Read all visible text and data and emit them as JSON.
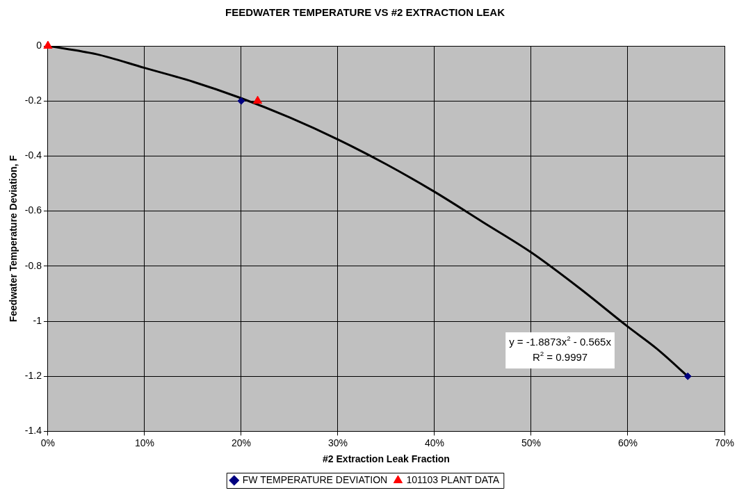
{
  "chart_data": {
    "type": "scatter",
    "title": "FEEDWATER TEMPERATURE VS #2 EXTRACTION LEAK",
    "xlabel": "#2 Extraction Leak Fraction",
    "ylabel": "Feedwater Temperature Deviation, F",
    "series": [
      {
        "name": "FW TEMPERATURE DEVIATION",
        "color": "#000080",
        "marker": "diamond",
        "x": [
          0.2,
          0.662
        ],
        "values": [
          -0.2,
          -1.2
        ]
      },
      {
        "name": "101103 PLANT DATA",
        "color": "#ff0000",
        "marker": "triangle",
        "x": [
          0,
          0.217
        ],
        "values": [
          0,
          -0.2
        ]
      },
      {
        "type": "line",
        "color": "#000000",
        "marker": "none",
        "x": [
          0,
          0.05,
          0.1,
          0.15,
          0.2,
          0.25,
          0.3,
          0.35,
          0.4,
          0.45,
          0.5,
          0.55,
          0.6,
          0.63,
          0.662
        ],
        "values": [
          0,
          -0.03,
          -0.08,
          -0.13,
          -0.19,
          -0.26,
          -0.34,
          -0.43,
          -0.53,
          -0.64,
          -0.75,
          -0.88,
          -1.02,
          -1.1,
          -1.2
        ]
      }
    ],
    "annotations": [
      "y = -1.8873x$^{2}$ - 0.565x",
      "R$^{2}$ = 0.9997"
    ],
    "xlim": [
      0,
      0.7
    ],
    "xticks": [
      {
        "value": 0,
        "label": "0%"
      },
      {
        "value": 0.1,
        "label": "10%"
      },
      {
        "value": 0.2,
        "label": "20%"
      },
      {
        "value": 0.3,
        "label": "30%"
      },
      {
        "value": 0.4,
        "label": "40%"
      },
      {
        "value": 0.5,
        "label": "50%"
      },
      {
        "value": 0.6,
        "label": "60%"
      },
      {
        "value": 0.7,
        "label": "70%"
      }
    ],
    "ylim": [
      -1.4,
      0
    ],
    "yticks": [
      -1.4,
      -1.2,
      -1,
      -0.8,
      -0.6,
      -0.4,
      -0.2,
      0
    ],
    "grid": true,
    "legend": "bottom"
  }
}
